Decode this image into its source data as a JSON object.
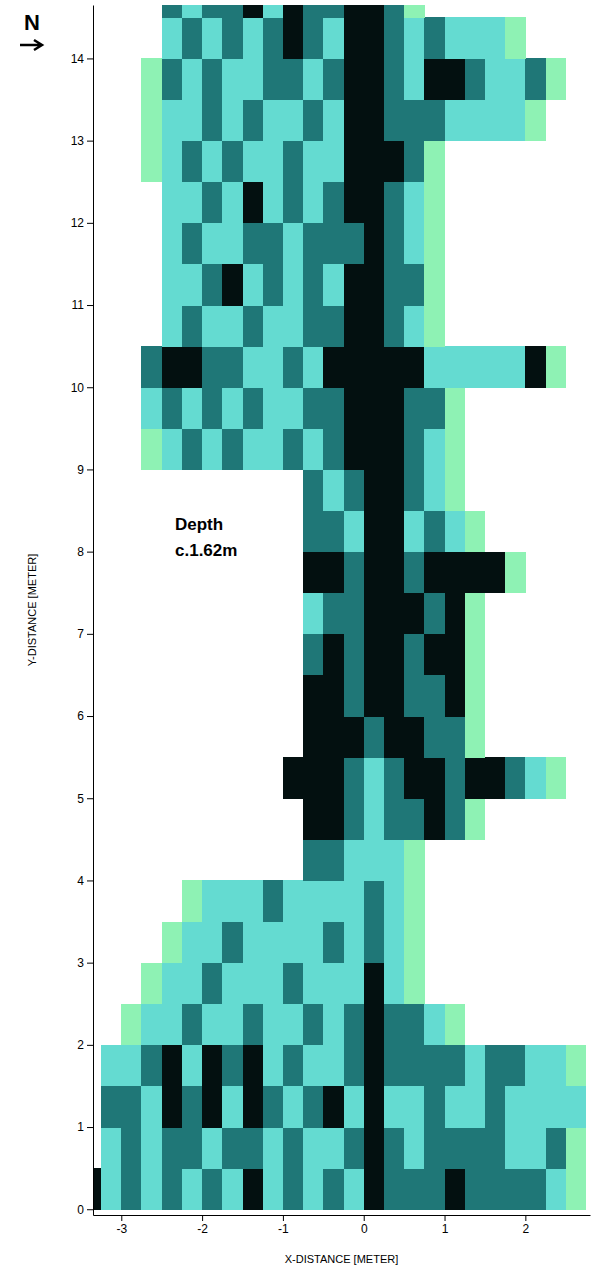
{
  "chart_data": {
    "type": "heatmap",
    "north_label": "N",
    "annotation": [
      "Depth",
      "c.1.62m"
    ],
    "x_label": "X-DISTANCE [METER]",
    "y_label": "Y-DISTANCE [METER]",
    "xlim": [
      -3.35,
      2.8
    ],
    "ylim": [
      -0.07,
      14.65
    ],
    "xticks": [
      -3,
      -2,
      -1,
      0,
      1,
      2
    ],
    "yticks": [
      0,
      1,
      2,
      3,
      4,
      5,
      6,
      7,
      8,
      9,
      10,
      11,
      12,
      13,
      14
    ],
    "zlim": [
      0,
      3
    ],
    "x": [
      -3.375,
      -3.125,
      -2.875,
      -2.625,
      -2.375,
      -2.125,
      -1.875,
      -1.625,
      -1.375,
      -1.125,
      -0.875,
      -0.625,
      -0.375,
      -0.125,
      0.125,
      0.375,
      0.625,
      0.875,
      1.125,
      1.375,
      1.625,
      1.875,
      2.125,
      2.375,
      2.625
    ],
    "y": [
      0.25,
      0.75,
      1.25,
      1.75,
      2.25,
      2.75,
      3.25,
      3.75,
      4.25,
      4.75,
      5.25,
      5.75,
      6.25,
      6.75,
      7.25,
      7.75,
      8.25,
      8.75,
      9.25,
      9.75,
      10.25,
      10.75,
      11.25,
      11.75,
      12.25,
      12.75,
      13.25,
      13.75,
      14.25,
      14.75
    ],
    "values": [
      [
        3,
        1,
        2,
        1,
        2,
        1,
        2,
        1,
        3,
        1,
        2,
        1,
        2,
        1,
        3,
        2,
        2,
        2,
        3,
        2,
        2,
        2,
        2,
        1,
        0
      ],
      [
        null,
        1,
        2,
        1,
        2,
        2,
        1,
        2,
        2,
        1,
        2,
        1,
        1,
        2,
        3,
        2,
        1,
        2,
        2,
        2,
        2,
        1,
        1,
        2,
        0
      ],
      [
        null,
        2,
        2,
        1,
        3,
        2,
        3,
        1,
        3,
        2,
        1,
        2,
        3,
        1,
        3,
        1,
        1,
        2,
        1,
        1,
        2,
        1,
        1,
        1,
        1
      ],
      [
        null,
        1,
        1,
        2,
        3,
        1,
        3,
        2,
        3,
        1,
        2,
        1,
        1,
        2,
        3,
        2,
        2,
        2,
        2,
        1,
        2,
        2,
        1,
        1,
        0
      ],
      [
        null,
        null,
        0,
        1,
        1,
        2,
        1,
        1,
        2,
        1,
        1,
        2,
        1,
        2,
        3,
        2,
        2,
        1,
        0,
        null,
        null,
        null,
        null,
        null,
        null
      ],
      [
        null,
        null,
        null,
        0,
        1,
        1,
        2,
        1,
        1,
        1,
        2,
        1,
        1,
        1,
        3,
        1,
        0,
        null,
        null,
        null,
        null,
        null,
        null,
        null,
        null
      ],
      [
        null,
        null,
        null,
        null,
        0,
        1,
        1,
        2,
        1,
        1,
        1,
        1,
        2,
        1,
        2,
        1,
        0,
        null,
        null,
        null,
        null,
        null,
        null,
        null,
        null
      ],
      [
        null,
        null,
        null,
        null,
        null,
        0,
        1,
        1,
        1,
        2,
        1,
        1,
        1,
        1,
        2,
        1,
        0,
        null,
        null,
        null,
        null,
        null,
        null,
        null,
        null
      ],
      [
        null,
        null,
        null,
        null,
        null,
        null,
        null,
        null,
        null,
        null,
        null,
        2,
        2,
        1,
        1,
        1,
        0,
        null,
        null,
        null,
        null,
        null,
        null,
        null,
        null
      ],
      [
        null,
        null,
        null,
        null,
        null,
        null,
        null,
        null,
        null,
        null,
        null,
        3,
        3,
        2,
        1,
        2,
        2,
        3,
        2,
        0,
        null,
        null,
        null,
        null,
        null
      ],
      [
        null,
        null,
        null,
        null,
        null,
        null,
        null,
        null,
        null,
        null,
        3,
        3,
        3,
        2,
        1,
        2,
        3,
        3,
        2,
        3,
        3,
        2,
        1,
        0,
        null
      ],
      [
        null,
        null,
        null,
        null,
        null,
        null,
        null,
        null,
        null,
        null,
        null,
        3,
        3,
        3,
        2,
        3,
        3,
        2,
        2,
        0,
        null,
        null,
        null,
        null,
        null
      ],
      [
        null,
        null,
        null,
        null,
        null,
        null,
        null,
        null,
        null,
        null,
        null,
        3,
        3,
        2,
        3,
        3,
        2,
        2,
        3,
        0,
        null,
        null,
        null,
        null,
        null
      ],
      [
        null,
        null,
        null,
        null,
        null,
        null,
        null,
        null,
        null,
        null,
        null,
        2,
        3,
        2,
        3,
        3,
        2,
        3,
        3,
        0,
        null,
        null,
        null,
        null,
        null
      ],
      [
        null,
        null,
        null,
        null,
        null,
        null,
        null,
        null,
        null,
        null,
        null,
        1,
        2,
        2,
        3,
        3,
        3,
        2,
        3,
        0,
        null,
        null,
        null,
        null,
        null
      ],
      [
        null,
        null,
        null,
        null,
        null,
        null,
        null,
        null,
        null,
        null,
        null,
        3,
        3,
        2,
        3,
        3,
        2,
        3,
        3,
        3,
        3,
        0,
        null,
        null,
        null
      ],
      [
        null,
        null,
        null,
        null,
        null,
        null,
        null,
        null,
        null,
        null,
        null,
        2,
        2,
        1,
        3,
        3,
        1,
        2,
        1,
        0,
        null,
        null,
        null,
        null,
        null
      ],
      [
        null,
        null,
        null,
        null,
        null,
        null,
        null,
        null,
        null,
        null,
        null,
        2,
        1,
        2,
        3,
        3,
        2,
        1,
        0,
        null,
        null,
        null,
        null,
        null,
        null
      ],
      [
        null,
        null,
        null,
        0,
        1,
        2,
        1,
        2,
        1,
        1,
        2,
        1,
        2,
        3,
        3,
        3,
        2,
        1,
        0,
        null,
        null,
        null,
        null,
        null,
        null
      ],
      [
        null,
        null,
        null,
        1,
        2,
        1,
        2,
        1,
        2,
        1,
        1,
        2,
        2,
        3,
        3,
        3,
        2,
        2,
        0,
        null,
        null,
        null,
        null,
        null,
        null
      ],
      [
        null,
        null,
        null,
        2,
        3,
        3,
        2,
        2,
        1,
        1,
        2,
        1,
        3,
        3,
        3,
        3,
        3,
        1,
        1,
        1,
        1,
        1,
        3,
        0,
        null
      ],
      [
        null,
        null,
        null,
        null,
        1,
        2,
        1,
        1,
        2,
        1,
        1,
        2,
        2,
        3,
        3,
        2,
        1,
        0,
        null,
        null,
        null,
        null,
        null,
        null,
        null
      ],
      [
        null,
        null,
        null,
        null,
        1,
        1,
        2,
        3,
        1,
        2,
        1,
        2,
        1,
        3,
        3,
        2,
        2,
        0,
        null,
        null,
        null,
        null,
        null,
        null,
        null
      ],
      [
        null,
        null,
        null,
        null,
        1,
        2,
        1,
        1,
        2,
        2,
        1,
        2,
        2,
        2,
        3,
        2,
        1,
        0,
        null,
        null,
        null,
        null,
        null,
        null,
        null
      ],
      [
        null,
        null,
        null,
        null,
        1,
        1,
        2,
        1,
        3,
        1,
        2,
        1,
        2,
        3,
        3,
        2,
        1,
        0,
        null,
        null,
        null,
        null,
        null,
        null,
        null
      ],
      [
        null,
        null,
        null,
        0,
        1,
        2,
        1,
        2,
        1,
        1,
        2,
        1,
        1,
        3,
        3,
        3,
        2,
        0,
        null,
        null,
        null,
        null,
        null,
        null,
        null
      ],
      [
        null,
        null,
        null,
        0,
        1,
        1,
        2,
        1,
        2,
        1,
        1,
        2,
        1,
        3,
        3,
        2,
        2,
        2,
        1,
        1,
        1,
        1,
        0,
        null,
        null
      ],
      [
        null,
        null,
        null,
        0,
        2,
        1,
        2,
        1,
        1,
        2,
        2,
        1,
        2,
        3,
        3,
        2,
        1,
        3,
        3,
        2,
        1,
        1,
        2,
        0,
        null
      ],
      [
        null,
        null,
        null,
        null,
        1,
        2,
        1,
        2,
        1,
        2,
        3,
        2,
        1,
        3,
        3,
        2,
        1,
        2,
        1,
        1,
        1,
        0,
        null,
        null,
        null
      ],
      [
        null,
        null,
        null,
        null,
        2,
        1,
        2,
        2,
        3,
        1,
        3,
        2,
        2,
        3,
        3,
        2,
        0,
        null,
        null,
        null,
        null,
        null,
        null,
        null,
        null
      ]
    ]
  }
}
